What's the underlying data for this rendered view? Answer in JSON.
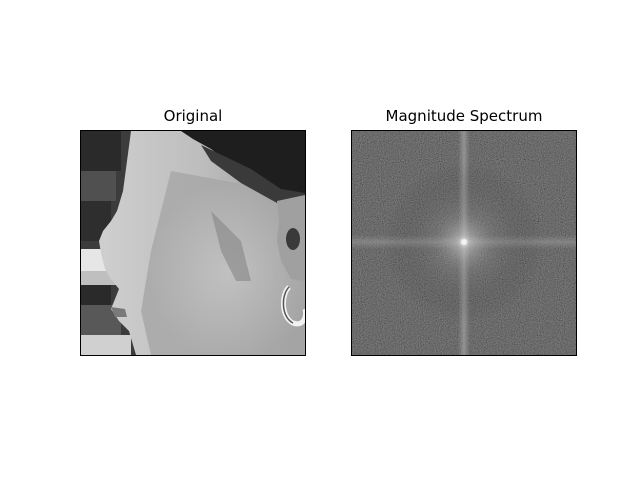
{
  "figure": {
    "panels": [
      {
        "title": "Original",
        "content": "grayscale face profile photo"
      },
      {
        "title": "Magnitude Spectrum",
        "content": "2D FFT magnitude spectrum"
      }
    ]
  },
  "colors": {
    "background": "#ffffff",
    "frame": "#000000",
    "spectrum_bg": "#3a3a3a",
    "spectrum_axis": "#8a8a8a",
    "spectrum_center": "#f2f2f2"
  }
}
